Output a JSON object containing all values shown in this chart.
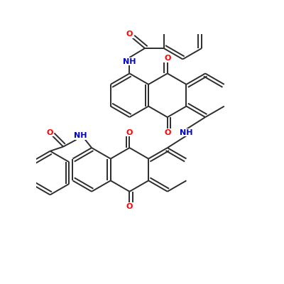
{
  "background": "#ffffff",
  "bond_color": "#2d2d2d",
  "bond_width": 1.4,
  "atom_colors": {
    "O": "#ff0000",
    "N": "#0000cc"
  },
  "font_size": 8.0,
  "fig_size": [
    4.0,
    4.0
  ],
  "dpi": 100,
  "xlim": [
    0,
    10
  ],
  "ylim": [
    0,
    10
  ]
}
